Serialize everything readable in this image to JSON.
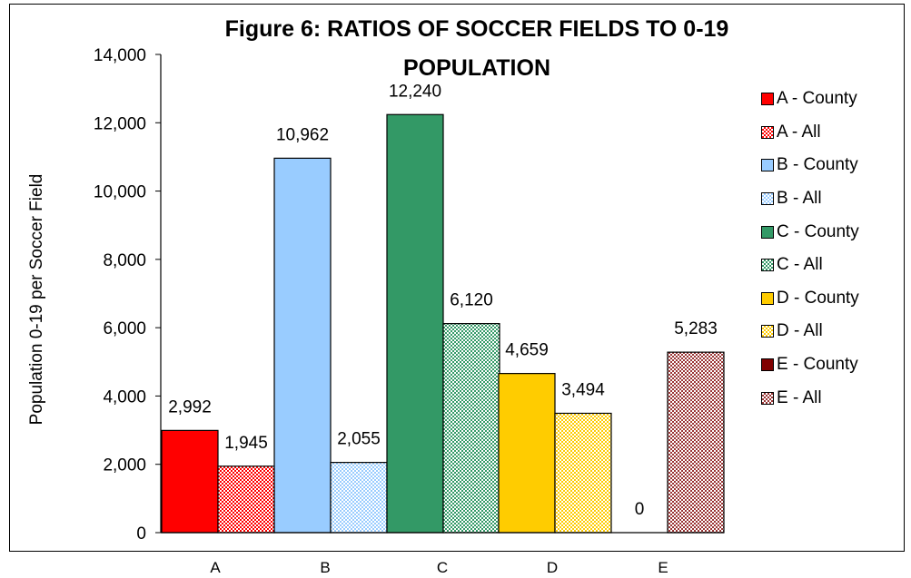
{
  "chart_data": {
    "type": "bar",
    "title_line1": "Figure 6: RATIOS OF SOCCER FIELDS TO 0-19",
    "title_line2": "POPULATION",
    "ylabel": "Population 0-19 per Soccer Field",
    "xlabel": "",
    "ylim": [
      0,
      14000
    ],
    "yticks": [
      "0",
      "2,000",
      "4,000",
      "6,000",
      "8,000",
      "10,000",
      "12,000",
      "14,000"
    ],
    "categories": [
      "A",
      "B",
      "C",
      "D",
      "E"
    ],
    "series": [
      {
        "name": "A - County",
        "category": "A",
        "value": 2992,
        "label": "2,992",
        "color": "#ff0000",
        "pattern": "solid"
      },
      {
        "name": "A - All",
        "category": "A",
        "value": 1945,
        "label": "1,945",
        "color": "#ff0000",
        "pattern": "check"
      },
      {
        "name": "B - County",
        "category": "B",
        "value": 10962,
        "label": "10,962",
        "color": "#99ccff",
        "pattern": "solid"
      },
      {
        "name": "B - All",
        "category": "B",
        "value": 2055,
        "label": "2,055",
        "color": "#99ccff",
        "pattern": "check"
      },
      {
        "name": "C - County",
        "category": "C",
        "value": 12240,
        "label": "12,240",
        "color": "#339966",
        "pattern": "solid"
      },
      {
        "name": "C - All",
        "category": "C",
        "value": 6120,
        "label": "6,120",
        "color": "#339966",
        "pattern": "check"
      },
      {
        "name": "D - County",
        "category": "D",
        "value": 4659,
        "label": "4,659",
        "color": "#ffcc00",
        "pattern": "solid"
      },
      {
        "name": "D - All",
        "category": "D",
        "value": 3494,
        "label": "3,494",
        "color": "#ffcc00",
        "pattern": "check"
      },
      {
        "name": "E - County",
        "category": "E",
        "value": 0,
        "label": "0",
        "color": "#800000",
        "pattern": "solid"
      },
      {
        "name": "E - All",
        "category": "E",
        "value": 5283,
        "label": "5,283",
        "color": "#993333",
        "pattern": "check"
      }
    ],
    "grid": false,
    "legend_position": "right"
  }
}
